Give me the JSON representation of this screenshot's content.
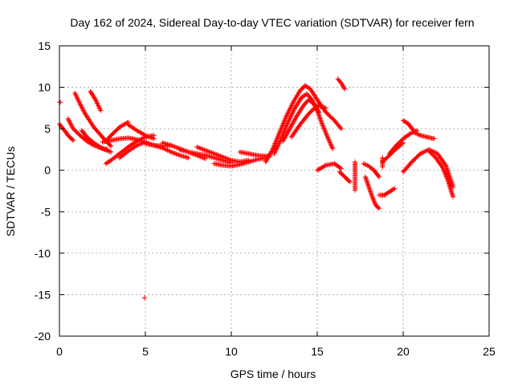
{
  "chart_data": {
    "type": "scatter",
    "title": "Day 162 of 2024, Sidereal Day-to-day VTEC variation (SDTVAR) for receiver fern",
    "xlabel": "GPS time / hours",
    "ylabel": "SDTVAR / TECUs",
    "xlim": [
      0,
      25
    ],
    "ylim": [
      -20,
      15
    ],
    "xticks": [
      0,
      5,
      10,
      15,
      20,
      25
    ],
    "yticks": [
      -20,
      -15,
      -10,
      -5,
      0,
      5,
      10,
      15
    ],
    "grid": true,
    "marker": "+",
    "series_color": "#ff0000",
    "tracks": [
      {
        "name": "trk1",
        "x": [
          0.0,
          0.05
        ],
        "y": [
          8.2,
          8.2
        ]
      },
      {
        "name": "trk2",
        "x": [
          0.0,
          0.1,
          0.3,
          0.5,
          0.8
        ],
        "y": [
          5.6,
          5.3,
          4.8,
          4.2,
          3.6
        ]
      },
      {
        "name": "trk3",
        "x": [
          0.5,
          0.8,
          1.2,
          1.6,
          2.0,
          2.4,
          2.8
        ],
        "y": [
          6.2,
          5.0,
          4.2,
          3.5,
          3.0,
          2.7,
          2.5
        ]
      },
      {
        "name": "trk4",
        "x": [
          0.9,
          1.2,
          1.5,
          2.0,
          2.5,
          3.0
        ],
        "y": [
          9.3,
          8.0,
          6.8,
          5.2,
          4.0,
          2.9
        ]
      },
      {
        "name": "trk5",
        "x": [
          1.8,
          2.1,
          2.4
        ],
        "y": [
          9.5,
          8.5,
          7.2
        ]
      },
      {
        "name": "trk6",
        "x": [
          1.3,
          1.6,
          2.0,
          2.5,
          3.0
        ],
        "y": [
          4.8,
          4.0,
          3.3,
          2.6,
          2.2
        ]
      },
      {
        "name": "trk7",
        "x": [
          2.7,
          3.0,
          3.5,
          4.0,
          4.5,
          5.0,
          5.5
        ],
        "y": [
          0.8,
          1.2,
          2.0,
          2.8,
          3.5,
          4.0,
          4.2
        ]
      },
      {
        "name": "trk8",
        "x": [
          2.7,
          3.0,
          3.5,
          4.0
        ],
        "y": [
          3.5,
          4.2,
          5.2,
          5.8
        ]
      },
      {
        "name": "trk9",
        "x": [
          4.0,
          4.5,
          5.0,
          5.5
        ],
        "y": [
          5.5,
          4.8,
          4.2,
          3.8
        ]
      },
      {
        "name": "trk10",
        "x": [
          3.5,
          4.0,
          4.5,
          5.0
        ],
        "y": [
          1.5,
          2.3,
          3.0,
          3.4
        ]
      },
      {
        "name": "trk11",
        "x": [
          2.5,
          3.0,
          3.5,
          4.0,
          4.5,
          5.0,
          5.5,
          6.0,
          6.5
        ],
        "y": [
          3.4,
          3.6,
          3.8,
          3.9,
          3.7,
          3.4,
          3.0,
          2.9,
          3.0
        ]
      },
      {
        "name": "trk12",
        "x": [
          5.0,
          5.5,
          6.0,
          6.5,
          7.0,
          7.5
        ],
        "y": [
          3.2,
          3.0,
          2.7,
          2.2,
          1.8,
          1.5
        ]
      },
      {
        "name": "trk13",
        "x": [
          6.0,
          6.5,
          7.0,
          7.5,
          8.0,
          8.5
        ],
        "y": [
          3.3,
          3.0,
          2.6,
          2.2,
          1.8,
          1.4
        ]
      },
      {
        "name": "trk14",
        "x": [
          7.0,
          7.5,
          8.0,
          8.5,
          9.0,
          9.5,
          10.0
        ],
        "y": [
          2.5,
          2.2,
          2.0,
          1.8,
          1.5,
          1.2,
          0.9
        ]
      },
      {
        "name": "trk15",
        "x": [
          8.0,
          8.5,
          9.0,
          9.5,
          10.0,
          10.5,
          11.0
        ],
        "y": [
          2.8,
          2.4,
          2.0,
          1.6,
          1.2,
          1.0,
          1.2
        ]
      },
      {
        "name": "trk16",
        "x": [
          9.0,
          9.5,
          10.0,
          10.5,
          11.0,
          11.5,
          12.0
        ],
        "y": [
          0.8,
          0.6,
          0.5,
          0.7,
          1.0,
          1.3,
          1.5
        ]
      },
      {
        "name": "trk17",
        "x": [
          10.5,
          11.0,
          11.5,
          12.0,
          12.3
        ],
        "y": [
          2.2,
          2.0,
          1.8,
          1.7,
          1.8
        ]
      },
      {
        "name": "trk18",
        "x": [
          12.0,
          12.4,
          12.8,
          13.2,
          13.6,
          14.0,
          14.3,
          14.6,
          15.0,
          15.5,
          16.0,
          16.4
        ],
        "y": [
          1.0,
          2.5,
          4.5,
          6.5,
          8.2,
          9.6,
          10.2,
          9.8,
          8.5,
          7.0,
          6.0,
          5.0
        ]
      },
      {
        "name": "trk19",
        "x": [
          12.5,
          12.9,
          13.3,
          13.7,
          14.1,
          14.4,
          14.7,
          15.0,
          15.3,
          15.6,
          15.9
        ],
        "y": [
          2.0,
          3.8,
          5.8,
          7.5,
          8.8,
          9.2,
          8.5,
          7.2,
          5.5,
          4.0,
          2.6
        ]
      },
      {
        "name": "trk20",
        "x": [
          13.0,
          13.4,
          13.8,
          14.2,
          14.5,
          14.8,
          15.1
        ],
        "y": [
          3.5,
          5.0,
          6.5,
          7.8,
          8.5,
          8.0,
          7.0
        ]
      },
      {
        "name": "trk21",
        "x": [
          13.5,
          14.0,
          14.5,
          15.0,
          15.5
        ],
        "y": [
          4.0,
          5.5,
          6.8,
          7.8,
          7.5
        ]
      },
      {
        "name": "trk22",
        "x": [
          16.2,
          16.4,
          16.6
        ],
        "y": [
          11.0,
          10.5,
          9.8
        ]
      },
      {
        "name": "trk23",
        "x": [
          15.0,
          15.5,
          16.0,
          16.4
        ],
        "y": [
          0.0,
          0.6,
          0.8,
          0.2
        ]
      },
      {
        "name": "trk24",
        "x": [
          16.3,
          16.6,
          16.9
        ],
        "y": [
          -0.2,
          -0.8,
          -1.4
        ]
      },
      {
        "name": "trk25",
        "x": [
          17.2,
          17.2,
          17.2,
          17.2
        ],
        "y": [
          1.0,
          0.4,
          -0.5,
          -2.4
        ]
      },
      {
        "name": "trk26",
        "x": [
          17.7,
          18.0,
          18.3,
          18.6
        ],
        "y": [
          0.8,
          0.5,
          0.0,
          -0.8
        ]
      },
      {
        "name": "trk27",
        "x": [
          17.8,
          18.0,
          18.2,
          18.4,
          18.6
        ],
        "y": [
          -0.8,
          -2.0,
          -3.2,
          -4.2,
          -4.6
        ]
      },
      {
        "name": "trk28",
        "x": [
          18.6,
          18.9,
          19.2,
          19.5
        ],
        "y": [
          -3.0,
          -3.0,
          -2.6,
          -2.2
        ]
      },
      {
        "name": "trk29",
        "x": [
          18.8,
          18.8,
          18.8
        ],
        "y": [
          1.5,
          0.9,
          0.4
        ]
      },
      {
        "name": "trk30",
        "x": [
          18.8,
          19.2,
          19.6,
          20.0
        ],
        "y": [
          1.0,
          1.8,
          2.6,
          3.3
        ]
      },
      {
        "name": "trk31",
        "x": [
          19.2,
          19.6,
          20.0,
          20.4,
          20.8
        ],
        "y": [
          2.0,
          3.0,
          3.8,
          4.4,
          4.8
        ]
      },
      {
        "name": "trk32",
        "x": [
          20.0,
          20.3,
          20.6
        ],
        "y": [
          6.0,
          5.6,
          4.8
        ]
      },
      {
        "name": "trk33",
        "x": [
          20.6,
          21.0,
          21.4,
          21.8
        ],
        "y": [
          4.6,
          4.2,
          4.0,
          3.8
        ]
      },
      {
        "name": "trk34",
        "x": [
          20.0,
          20.5,
          21.0,
          21.5,
          22.0,
          22.5,
          22.9
        ],
        "y": [
          -0.2,
          1.0,
          2.0,
          2.5,
          2.0,
          0.5,
          -2.0
        ]
      },
      {
        "name": "trk35",
        "x": [
          21.5,
          21.9,
          22.3,
          22.6,
          22.9
        ],
        "y": [
          2.3,
          1.5,
          0.3,
          -1.2,
          -3.2
        ]
      }
    ],
    "isolated_points": [
      {
        "x": 4.95,
        "y": -15.4
      },
      {
        "x": 17.2,
        "y": -2.4
      },
      {
        "x": 18.8,
        "y": -3.0
      }
    ]
  }
}
